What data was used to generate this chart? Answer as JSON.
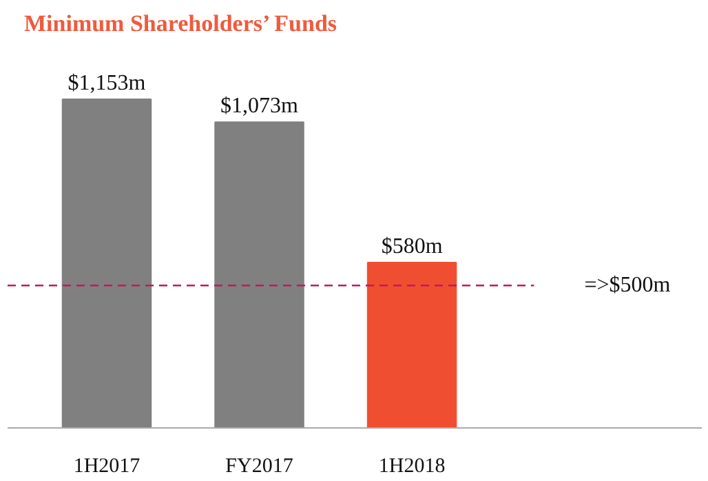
{
  "chart_data": {
    "type": "bar",
    "title": "Minimum Shareholders’ Funds",
    "categories": [
      "1H2017",
      "FY2017",
      "1H2018"
    ],
    "values": [
      1153,
      1073,
      580
    ],
    "colors": [
      "#808080",
      "#808080",
      "#f04e30"
    ],
    "value_labels": [
      "$1,153m",
      "$1,073m",
      "$580m"
    ],
    "ref_lines": [
      {
        "axis": "y",
        "value": 500,
        "label": "=>$500m",
        "color": "#c2185b",
        "line_style": "dashed"
      }
    ],
    "grid": false
  }
}
